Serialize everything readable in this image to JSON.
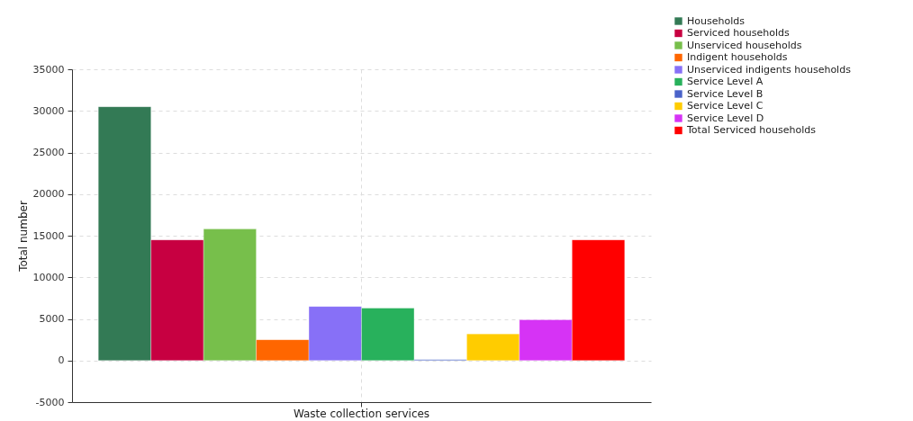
{
  "chart_data": {
    "type": "bar",
    "categories": [
      "Waste collection services"
    ],
    "ylabel": "Total number",
    "ylim": [
      -5000,
      35000
    ],
    "yticks": [
      -5000,
      0,
      5000,
      10000,
      15000,
      20000,
      25000,
      30000,
      35000
    ],
    "grid": true,
    "legend": "top right",
    "series": [
      {
        "name": "Households",
        "color": "#337a55",
        "values": [
          30500
        ]
      },
      {
        "name": "Serviced households",
        "color": "#c70041",
        "values": [
          14500
        ]
      },
      {
        "name": "Unserviced households",
        "color": "#77bf4b",
        "values": [
          15800
        ]
      },
      {
        "name": "Indigent households",
        "color": "#ff6600",
        "values": [
          2500
        ]
      },
      {
        "name": "Unserviced indigents households",
        "color": "#8770f7",
        "values": [
          6500
        ]
      },
      {
        "name": "Service Level A",
        "color": "#28b15c",
        "values": [
          6300
        ]
      },
      {
        "name": "Service Level B",
        "color": "#4a63c9",
        "values": [
          100
        ]
      },
      {
        "name": "Service Level C",
        "color": "#ffcc00",
        "values": [
          3200
        ]
      },
      {
        "name": "Service Level D",
        "color": "#d633f5",
        "values": [
          4900
        ]
      },
      {
        "name": "Total Serviced households",
        "color": "#ff0000",
        "values": [
          14500
        ]
      }
    ]
  }
}
